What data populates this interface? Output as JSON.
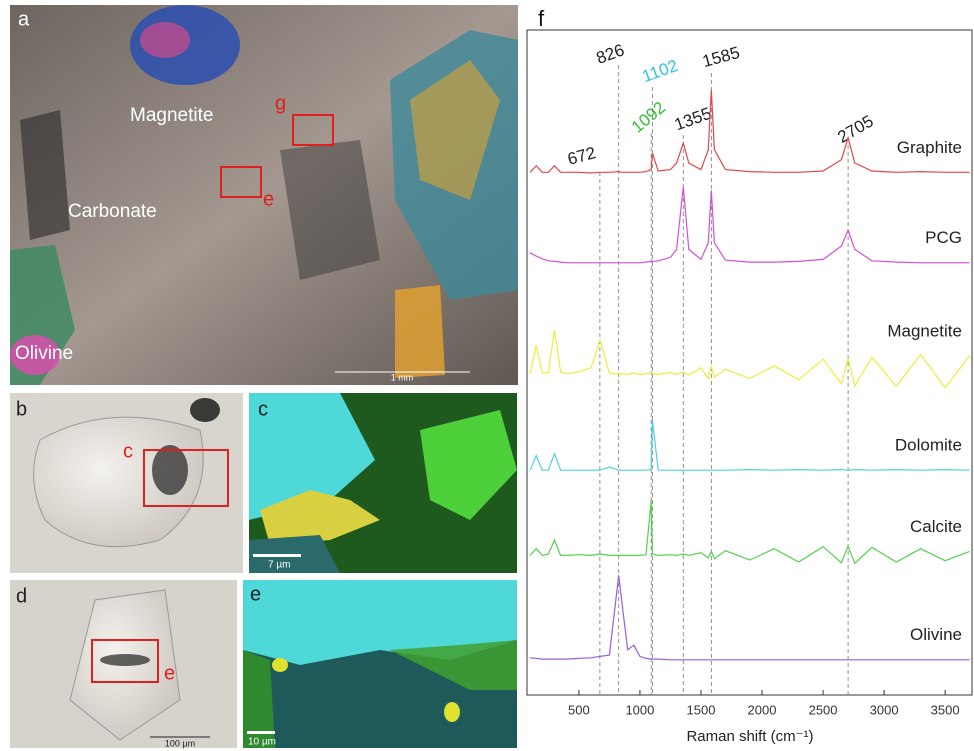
{
  "panels": {
    "a": {
      "label": "a",
      "annotations": [
        "Magnetite",
        "Carbonate",
        "Olivine"
      ],
      "boxes": [
        "g",
        "e"
      ],
      "scale": "1 mm"
    },
    "b": {
      "label": "b",
      "box": "c"
    },
    "c": {
      "label": "c",
      "scale": "7 µm"
    },
    "d": {
      "label": "d",
      "box": "e",
      "scale": "100 µm"
    },
    "e": {
      "label": "e",
      "scale": "10 µm"
    },
    "f": {
      "label": "f"
    }
  },
  "chart_data": {
    "type": "line",
    "x_label": "Raman shift (cm⁻¹)",
    "xlim": [
      75,
      3720
    ],
    "xticks": [
      500,
      1000,
      1500,
      2000,
      2500,
      3000,
      3500
    ],
    "ylim": [
      0,
      100
    ],
    "peaks": [
      {
        "value": 672,
        "color": "#222222"
      },
      {
        "value": 826,
        "color": "#222222"
      },
      {
        "value": 1092,
        "color": "#2fbf2f"
      },
      {
        "value": 1102,
        "color": "#29c6dd"
      },
      {
        "value": 1355,
        "color": "#222222"
      },
      {
        "value": 1585,
        "color": "#222222"
      },
      {
        "value": 2705,
        "color": "#222222"
      }
    ],
    "x": [
      100,
      150,
      200,
      250,
      300,
      350,
      400,
      500,
      600,
      672,
      750,
      826,
      850,
      900,
      950,
      1000,
      1050,
      1092,
      1102,
      1150,
      1250,
      1300,
      1355,
      1400,
      1500,
      1560,
      1585,
      1610,
      1700,
      1900,
      2100,
      2300,
      2500,
      2650,
      2705,
      2760,
      2900,
      3100,
      3300,
      3500,
      3700
    ],
    "series": [
      {
        "name": "Graphite",
        "color": "#e0474a",
        "values": [
          78.6,
          79.6,
          78.6,
          78.6,
          79.6,
          78.6,
          78.6,
          78.6,
          78.5,
          78.6,
          78.6,
          78.7,
          78.6,
          78.6,
          78.6,
          78.6,
          78.7,
          79,
          81.5,
          78.8,
          79,
          80,
          83,
          80,
          79,
          82,
          91,
          82,
          79,
          78.7,
          78.6,
          78.6,
          78.8,
          80.5,
          83.8,
          80,
          78.8,
          78.6,
          78.7,
          78.6,
          78.6
        ]
      },
      {
        "name": "PCG",
        "color": "#d54fd5",
        "values": [
          66.5,
          66,
          65.6,
          65.3,
          65.2,
          65.1,
          65,
          65,
          65,
          65,
          65,
          65,
          65,
          65,
          65,
          65,
          65.1,
          65.2,
          65.2,
          65.3,
          65.8,
          67,
          76.4,
          67,
          65.5,
          68,
          75.9,
          68,
          65.4,
          65.1,
          65.1,
          65.2,
          65.5,
          67.5,
          69.9,
          67,
          65.3,
          65.1,
          65,
          65,
          65
        ]
      },
      {
        "name": "Magnetite",
        "color": "#eded3a",
        "values": [
          48.3,
          52.6,
          48.4,
          48.5,
          54.9,
          48.6,
          48.3,
          48.6,
          49.2,
          53.4,
          48.4,
          48.2,
          48.3,
          48.2,
          48.4,
          48.2,
          48.3,
          48.5,
          48.3,
          48.2,
          48.5,
          48.2,
          48.6,
          48.1,
          49.2,
          47.6,
          49.4,
          47.8,
          49,
          47.6,
          49.5,
          47.4,
          50.5,
          46.8,
          50.6,
          46.5,
          50.8,
          46.4,
          51.2,
          46.2,
          51
        ]
      },
      {
        "name": "Dolomite",
        "color": "#4fd3dd",
        "values": [
          33.8,
          36,
          33.8,
          33.8,
          36.3,
          33.8,
          33.8,
          33.8,
          33.8,
          33.8,
          34.3,
          33.8,
          33.8,
          33.8,
          33.8,
          33.8,
          33.8,
          33.9,
          41.4,
          33.8,
          33.8,
          33.8,
          33.8,
          33.8,
          33.8,
          33.8,
          33.8,
          33.8,
          33.8,
          33.9,
          33.8,
          33.9,
          33.8,
          33.9,
          33.8,
          33.9,
          33.8,
          33.9,
          33.8,
          33.9,
          33.8
        ]
      },
      {
        "name": "Calcite",
        "color": "#55d04f",
        "values": [
          21,
          22,
          21,
          21.2,
          23.3,
          21,
          21,
          21.1,
          21,
          21.2,
          21,
          21,
          21,
          21,
          21,
          21,
          21.1,
          29.3,
          21.2,
          21,
          21.1,
          21,
          21.2,
          21,
          21.4,
          20.6,
          21.6,
          20.5,
          21.7,
          20.3,
          22,
          20,
          22.3,
          19.9,
          22.4,
          19.8,
          22.2,
          20,
          22,
          20.2,
          21.6
        ]
      },
      {
        "name": "Olivine",
        "color": "#9a5fd6",
        "values": [
          5.6,
          5.5,
          5.4,
          5.4,
          5.4,
          5.4,
          5.4,
          5.5,
          5.6,
          5.8,
          6,
          18,
          14.3,
          6.8,
          7.5,
          5.8,
          5.5,
          5.4,
          5.4,
          5.4,
          5.3,
          5.3,
          5.3,
          5.3,
          5.3,
          5.3,
          5.3,
          5.3,
          5.3,
          5.3,
          5.3,
          5.3,
          5.3,
          5.3,
          5.3,
          5.3,
          5.3,
          5.3,
          5.3,
          5.3,
          5.3
        ]
      }
    ]
  }
}
